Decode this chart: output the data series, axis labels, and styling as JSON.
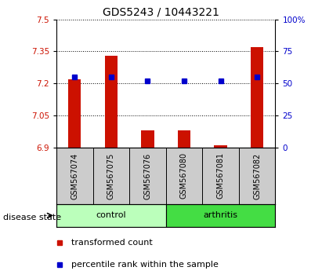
{
  "title": "GDS5243 / 10443221",
  "samples": [
    "GSM567074",
    "GSM567075",
    "GSM567076",
    "GSM567080",
    "GSM567081",
    "GSM567082"
  ],
  "bar_tops": [
    7.22,
    7.33,
    6.98,
    6.98,
    6.91,
    7.37
  ],
  "bar_bottom": 6.9,
  "blue_pct": [
    55,
    55,
    52,
    52,
    52,
    55
  ],
  "ylim_left": [
    6.9,
    7.5
  ],
  "ylim_right": [
    0,
    100
  ],
  "yticks_left": [
    6.9,
    7.05,
    7.2,
    7.35,
    7.5
  ],
  "yticks_right": [
    0,
    25,
    50,
    75,
    100
  ],
  "ytick_labels_left": [
    "6.9",
    "7.05",
    "7.2",
    "7.35",
    "7.5"
  ],
  "ytick_labels_right": [
    "0",
    "25",
    "50",
    "75",
    "100%"
  ],
  "bar_color": "#cc1100",
  "blue_color": "#0000cc",
  "control_samples": [
    0,
    1,
    2
  ],
  "arthritis_samples": [
    3,
    4,
    5
  ],
  "control_color": "#bbffbb",
  "arthritis_color": "#44dd44",
  "sample_label_area_color": "#cccccc",
  "disease_state_label": "disease state",
  "control_label": "control",
  "arthritis_label": "arthritis",
  "legend_red_label": "transformed count",
  "legend_blue_label": "percentile rank within the sample"
}
